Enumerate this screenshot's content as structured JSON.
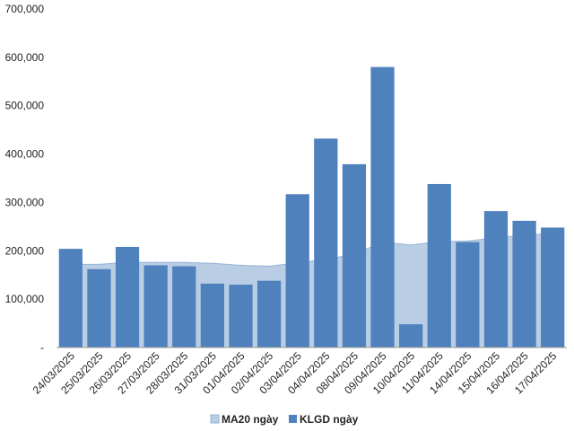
{
  "chart_data": {
    "type": "bar",
    "categories": [
      "24/03/2025",
      "25/03/2025",
      "26/03/2025",
      "27/03/2025",
      "28/03/2025",
      "31/03/2025",
      "01/04/2025",
      "02/04/2025",
      "03/04/2025",
      "04/04/2025",
      "08/04/2025",
      "09/04/2025",
      "10/04/2025",
      "11/04/2025",
      "14/04/2025",
      "15/04/2025",
      "16/04/2025",
      "17/04/2025"
    ],
    "series": [
      {
        "name": "MA20 ngày",
        "kind": "area",
        "color": "#B9CDE5",
        "values": [
          172000,
          172000,
          176000,
          176000,
          176000,
          174000,
          170000,
          168000,
          175000,
          182000,
          193000,
          218000,
          212000,
          219000,
          220000,
          227000,
          232000,
          236000
        ]
      },
      {
        "name": "KLGD ngày",
        "kind": "bar",
        "color": "#4F81BD",
        "values": [
          204000,
          162000,
          208000,
          170000,
          168000,
          132000,
          130000,
          138000,
          317000,
          432000,
          379000,
          580000,
          48000,
          338000,
          218000,
          282000,
          262000,
          248000
        ]
      }
    ],
    "ylim": [
      0,
      700000
    ],
    "yticks": [
      0,
      100000,
      200000,
      300000,
      400000,
      500000,
      600000,
      700000
    ],
    "ytick_labels": [
      "-",
      "100,000",
      "200,000",
      "300,000",
      "400,000",
      "500,000",
      "600,000",
      "700,000"
    ],
    "title": "",
    "xlabel": "",
    "ylabel": "",
    "grid": false,
    "legend": "bottom-center"
  }
}
